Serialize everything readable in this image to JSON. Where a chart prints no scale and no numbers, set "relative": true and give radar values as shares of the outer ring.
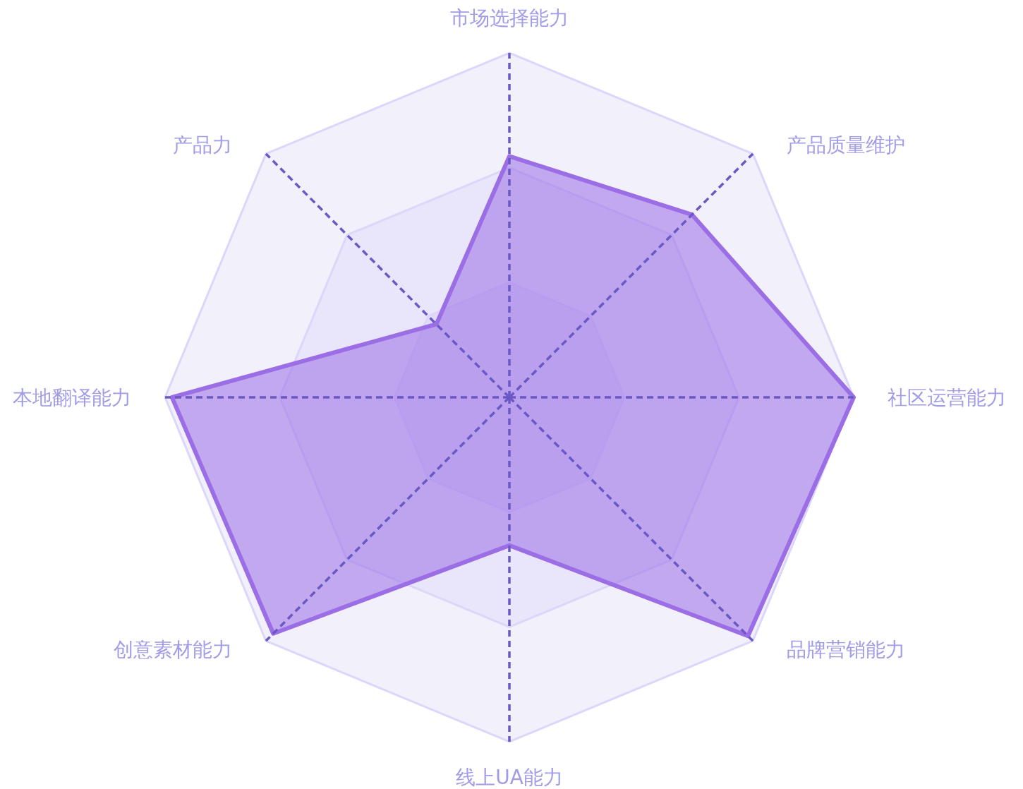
{
  "chart_data": {
    "type": "radar",
    "relative": true,
    "categories": [
      "市场选择能力",
      "产品质量维护",
      "社区运营能力",
      "品牌营销能力",
      "线上UA能力",
      "创意素材能力",
      "本地翻译能力",
      "产品力"
    ],
    "series": [
      {
        "color": "#9b6ee6",
        "values": [
          0.7,
          0.75,
          1.0,
          0.98,
          0.43,
          0.97,
          0.98,
          0.3
        ]
      }
    ]
  }
}
